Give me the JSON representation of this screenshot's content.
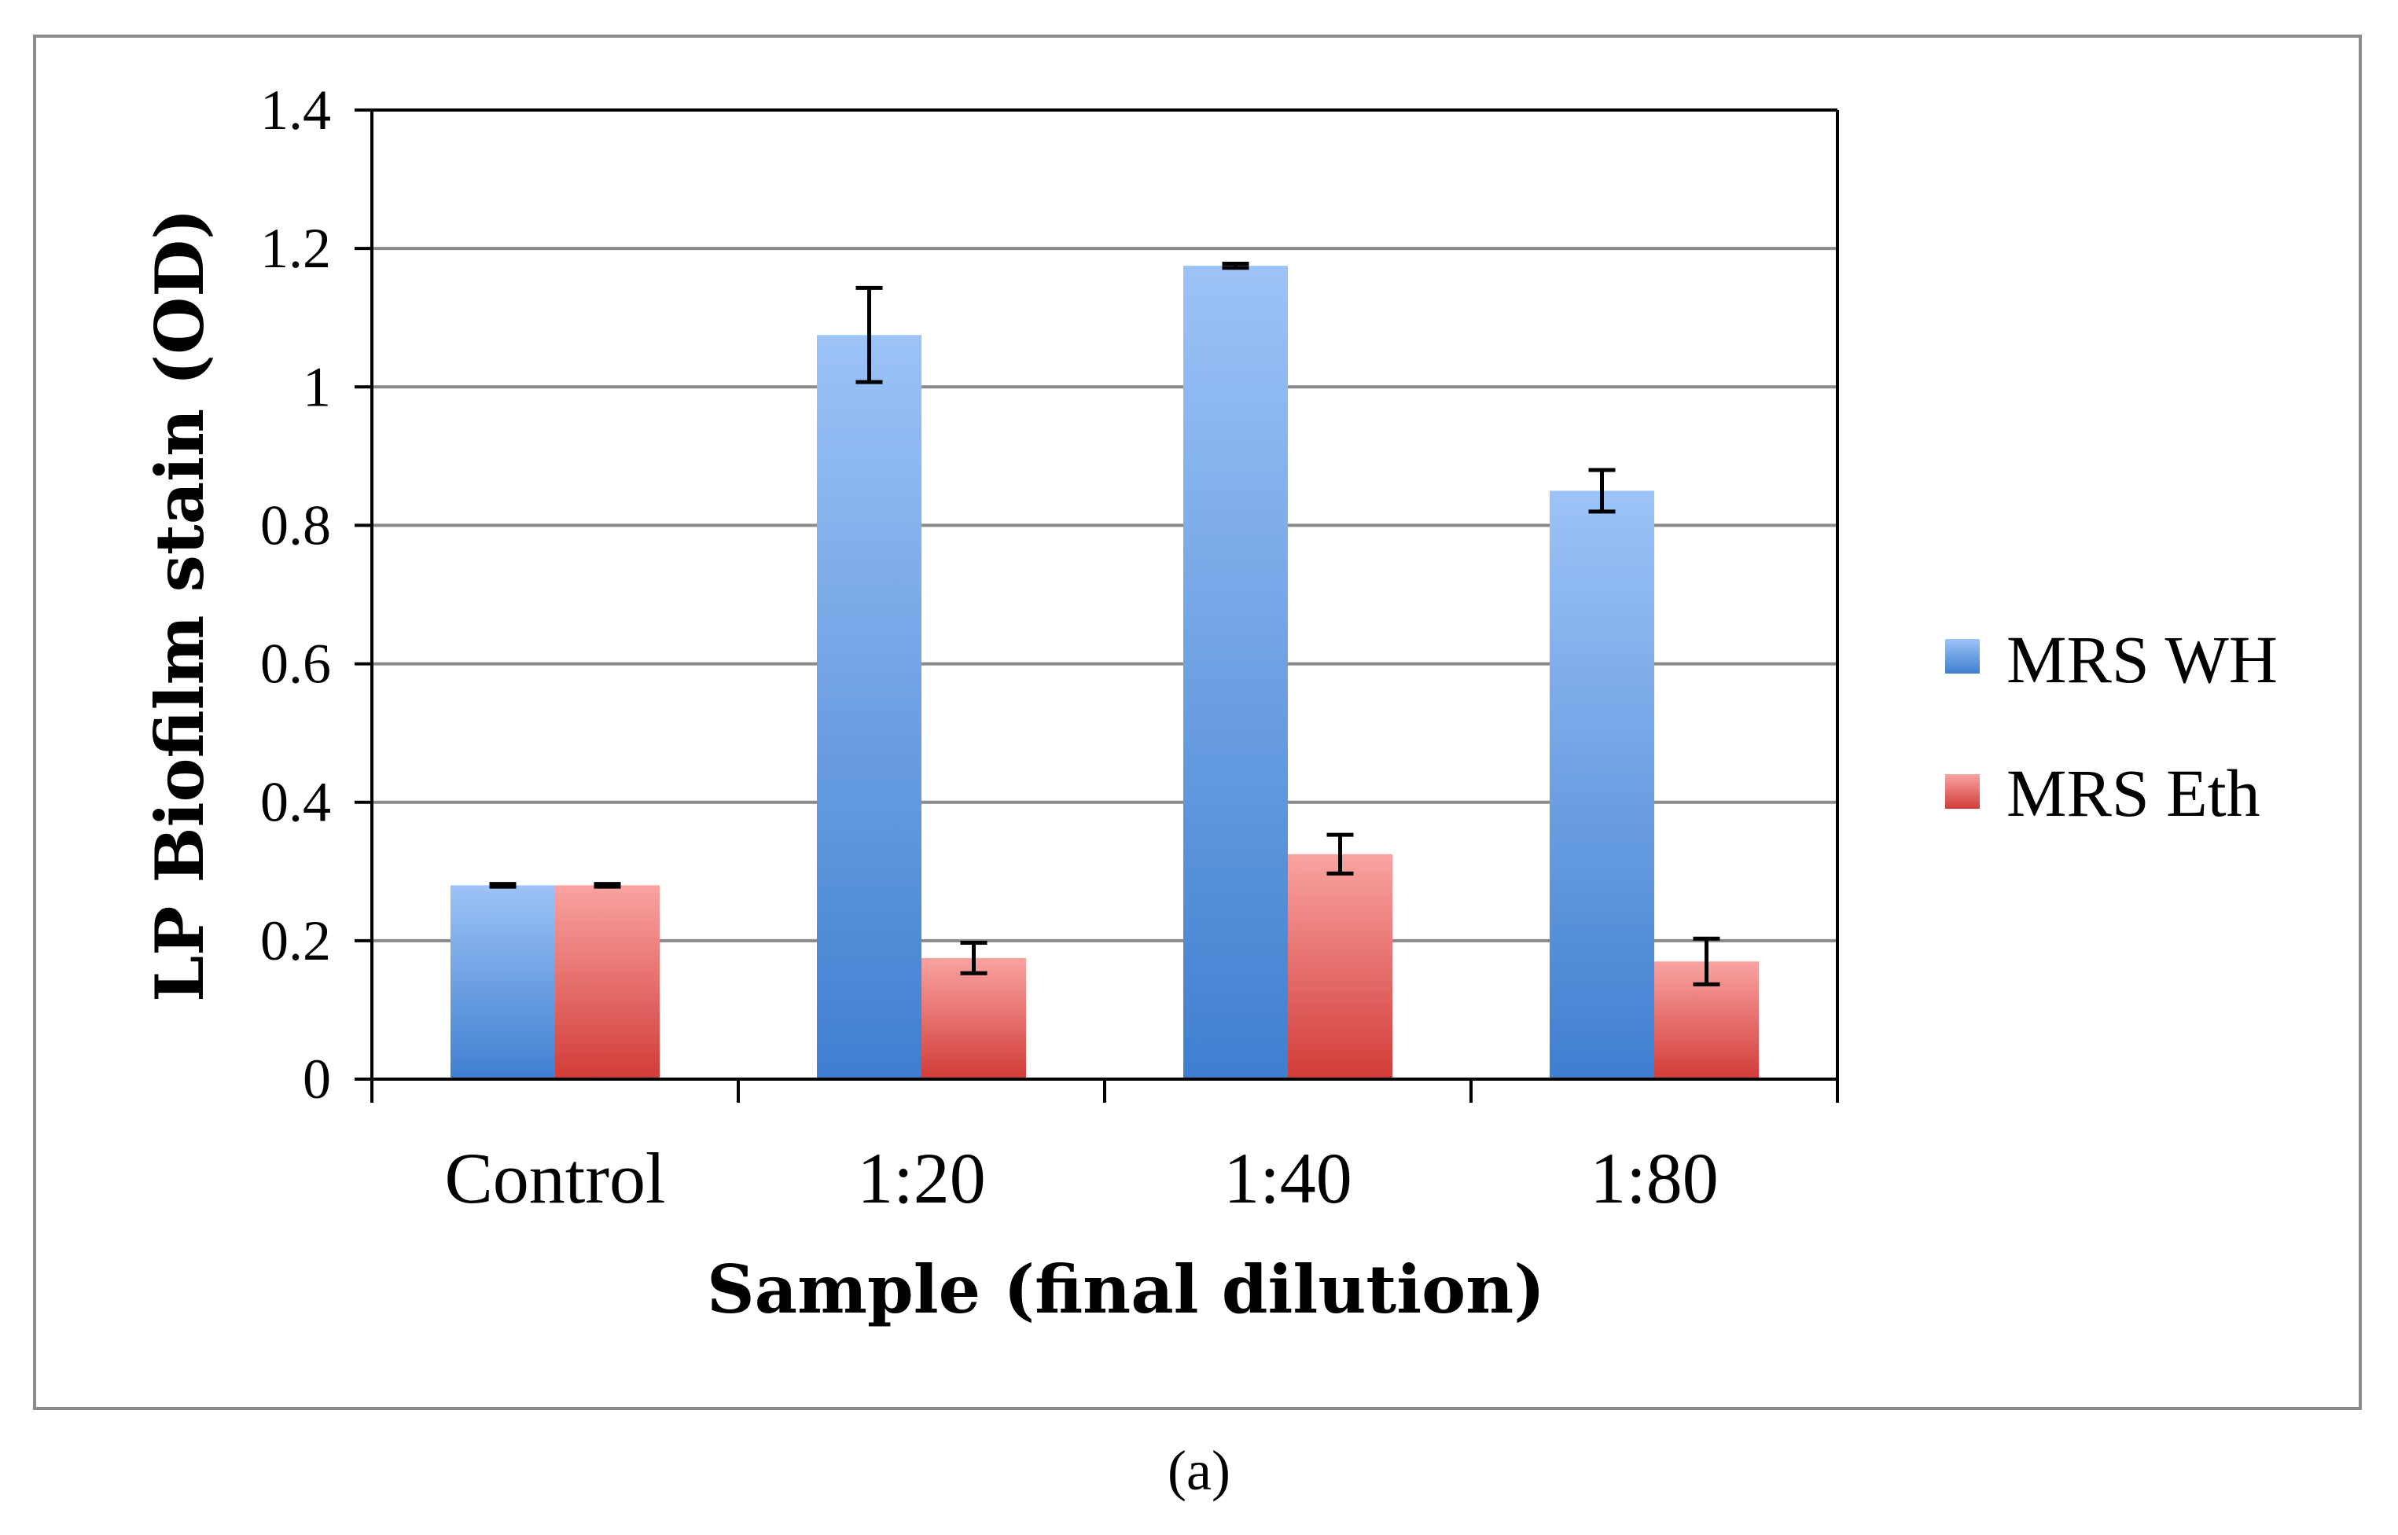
{
  "caption": "(a)",
  "chart_data": {
    "type": "bar",
    "title": "",
    "xlabel": "Sample (final dilution)",
    "ylabel": "LP Biofilm stain (OD)",
    "categories": [
      "Control",
      "1:20",
      "1:40",
      "1:80"
    ],
    "ylim": [
      0,
      1.4
    ],
    "yticks": [
      0,
      0.2,
      0.4,
      0.6,
      0.8,
      1,
      1.2,
      1.4
    ],
    "ytick_labels": [
      "0",
      "0.2",
      "0.4",
      "0.6",
      "0.8",
      "1",
      "1.2",
      "1.4"
    ],
    "grid": true,
    "legend_position": "right",
    "series": [
      {
        "name": "MRS WH",
        "values": [
          0.28,
          1.075,
          1.175,
          0.85
        ],
        "errors": [
          0.002,
          0.068,
          0.003,
          0.03
        ],
        "color_light": "#9dc3f7",
        "color_dark": "#3f7fd0"
      },
      {
        "name": "MRS Eth",
        "values": [
          0.28,
          0.175,
          0.325,
          0.17
        ],
        "errors": [
          0.002,
          0.022,
          0.028,
          0.033
        ],
        "color_light": "#f9a3a1",
        "color_dark": "#d23c38"
      }
    ]
  }
}
